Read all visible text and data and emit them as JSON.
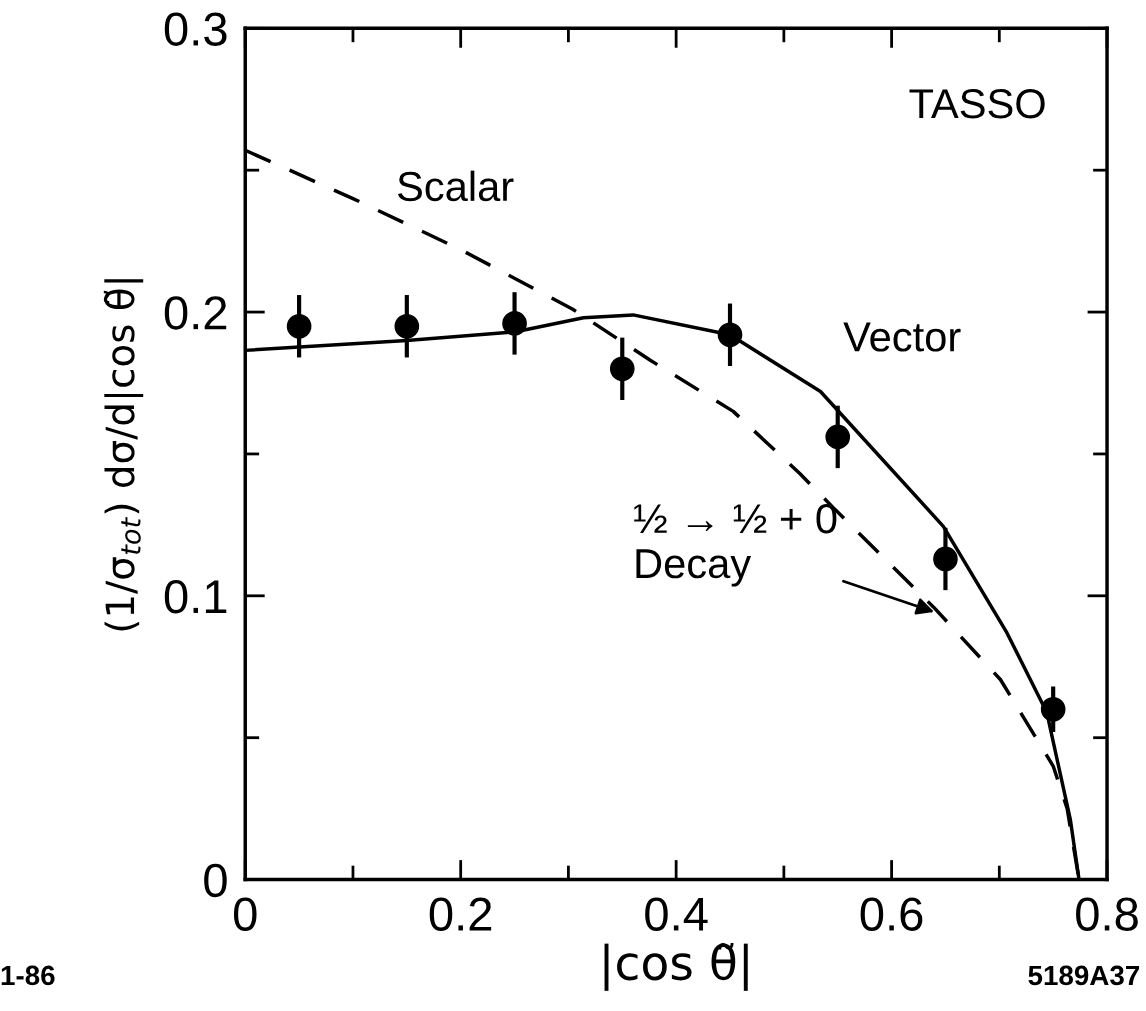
{
  "chart_data": {
    "type": "scatter",
    "xlabel": "|cos θ̃|",
    "ylabel": "(1/σ$_{tot}$) dσ/d|cos θ̃|",
    "xlim": [
      0,
      0.8
    ],
    "ylim": [
      0,
      0.3
    ],
    "xticks": [
      0,
      {
        "value": 0.1,
        "label": null
      },
      0.2,
      {
        "value": 0.3,
        "label": null
      },
      0.4,
      {
        "value": 0.5,
        "label": null
      },
      0.6,
      {
        "value": 0.7,
        "label": null
      },
      0.8
    ],
    "yticks": [
      0,
      {
        "value": 0.05,
        "label": null
      },
      0.1,
      {
        "value": 0.15,
        "label": null
      },
      0.2,
      {
        "value": 0.25,
        "label": null
      },
      0.3
    ],
    "grid": false,
    "legend": false,
    "series": [
      {
        "type": "scatter",
        "color": "#000000",
        "marker": "circle",
        "x": [
          0.05,
          0.15,
          0.25,
          0.35,
          0.45,
          0.55,
          0.65,
          0.75
        ],
        "values": [
          0.195,
          0.195,
          0.196,
          0.18,
          0.192,
          0.156,
          0.113,
          0.06
        ],
        "errors": [
          0.011,
          0.011,
          0.011,
          0.011,
          0.011,
          0.011,
          0.011,
          0.008
        ]
      },
      {
        "type": "line",
        "name": "Vector",
        "color": "#000000",
        "line_style": "solid",
        "x": [
          0,
          0.15,
          0.25,
          0.314,
          0.36,
          0.45,
          0.534,
          0.648,
          0.707,
          0.744,
          0.766,
          0.774
        ],
        "values": [
          0.1865,
          0.19,
          0.193,
          0.198,
          0.199,
          0.192,
          0.172,
          0.1245,
          0.087,
          0.059,
          0.021,
          0
        ]
      },
      {
        "type": "line",
        "name": "Scalar",
        "color": "#000000",
        "line_style": "dashed",
        "x": [
          0,
          0.1,
          0.2,
          0.304,
          0.376,
          0.453,
          0.515,
          0.546,
          0.639,
          0.701,
          0.75,
          0.763,
          0.774
        ],
        "values": [
          0.257,
          0.24,
          0.222,
          0.201,
          0.183,
          0.165,
          0.143,
          0.131,
          0.096,
          0.0705,
          0.04,
          0.025,
          0
        ]
      }
    ],
    "annotations": [
      "TASSO",
      {
        "text": "½ → ½ + 0\nDecay",
        "x": 0.642,
        "y": 0.094
      },
      "1-86",
      "5189A37"
    ]
  }
}
